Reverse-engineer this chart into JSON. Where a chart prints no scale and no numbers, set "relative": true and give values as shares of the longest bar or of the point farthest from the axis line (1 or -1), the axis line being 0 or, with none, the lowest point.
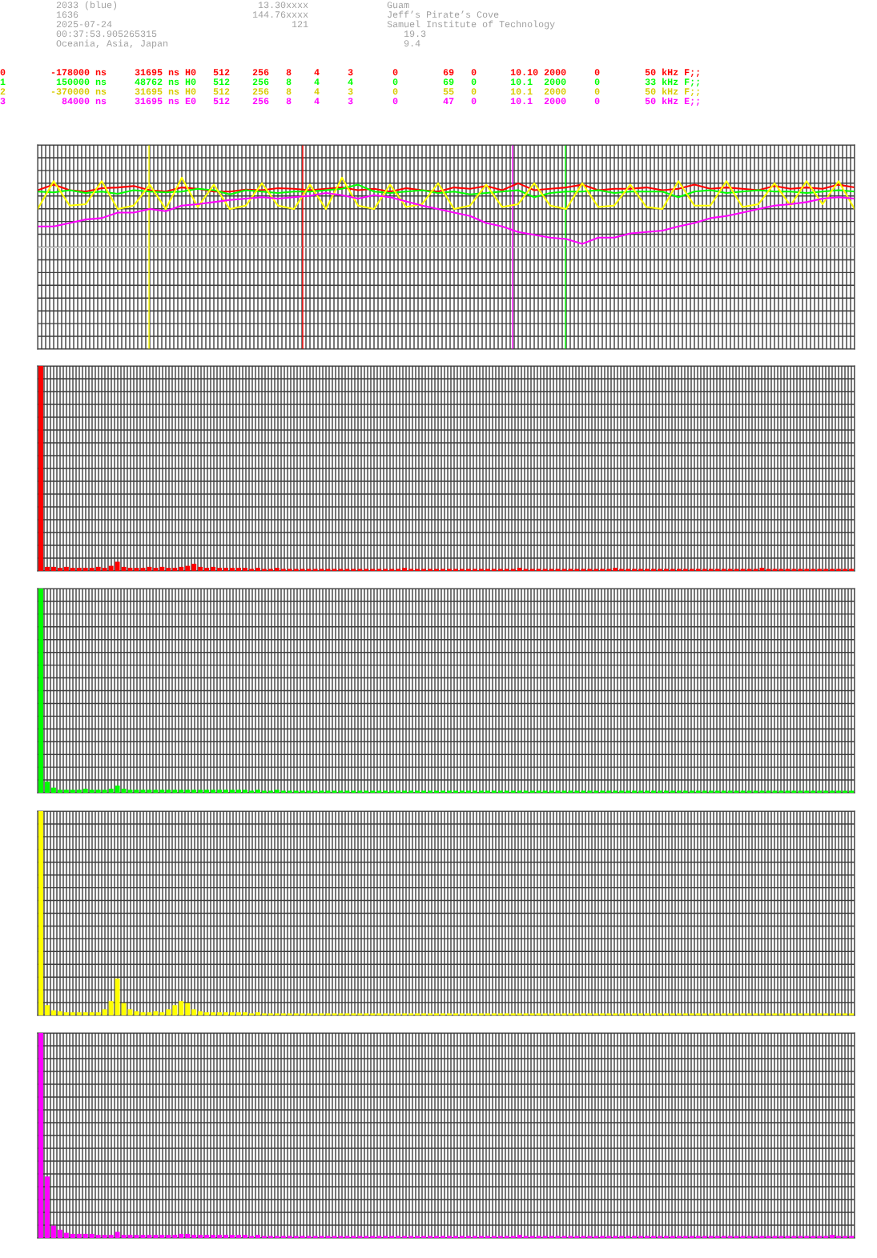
{
  "chart_data": [
    {
      "type": "other",
      "annotations": [
        "          2033 (blue)                         13.30xxxx              Guam",
        "          1636                               144.76xxxx              Jeff’s Pirate’s Cove",
        "          2025-07-24                                121              Samuel Institute of Technology",
        "          00:37:53.905265315                                            19.3",
        "          Oceania, Asia, Japan                                          9.4",
        "0        -178000 ns     31695 ns H0   512    256   8    4     3       0        69   0      10.10 2000     0        50 kHz F;;",
        "1         150000 ns     48762 ns H0   512    256   8    4     4       0        69   0      10.1  2000     0        33 kHz F;;",
        "2        -370000 ns     31695 ns H0   512    256   8    4     3       0        55   0      10.1  2000     0        50 kHz F;;",
        "3          84000 ns     31695 ns E0   512    256   8    4     3       0        47   0      10.1  2000     0        50 kHz E;;"
      ],
      "colors": [
        "#a0a0a0",
        "#a0a0a0",
        "#a0a0a0",
        "#a0a0a0",
        "#a0a0a0",
        "#ff0000",
        "#00ff00",
        "#d8cc00",
        "#ff00ff"
      ]
    },
    {
      "type": "line",
      "relative": true,
      "tick_labels": false,
      "grid": true,
      "line_style": "solid",
      "categories": [
        null,
        null,
        null,
        null,
        null,
        null,
        null,
        null,
        null,
        null,
        null,
        null,
        null,
        null,
        null,
        null,
        null,
        null,
        null,
        null,
        null,
        null,
        null,
        null,
        null,
        null,
        null,
        null,
        null,
        null,
        null,
        null,
        null,
        null,
        null,
        null,
        null,
        null,
        null,
        null,
        null,
        null,
        null,
        null,
        null,
        null,
        null,
        null,
        null,
        null,
        null,
        null
      ],
      "series": [
        {
          "color": "#ff0000",
          "values": [
            0.82,
            0.9,
            0.82,
            0.8,
            0.85,
            0.86,
            0.88,
            0.82,
            0.8,
            0.86,
            0.84,
            0.8,
            0.8,
            0.83,
            0.82,
            0.85,
            0.84,
            0.82,
            0.84,
            0.86,
            0.82,
            0.84,
            0.8,
            0.85,
            0.82,
            0.8,
            0.86,
            0.84,
            0.88,
            0.82,
            0.92,
            0.82,
            0.84,
            0.86,
            0.9,
            0.82,
            0.84,
            0.84,
            0.86,
            0.82,
            0.84,
            0.9,
            0.84,
            0.86,
            0.84,
            0.82,
            0.88,
            0.84,
            0.86,
            0.84,
            0.9,
            0.86
          ]
        },
        {
          "color": "#00ff00",
          "values": [
            0.8,
            0.79,
            0.82,
            0.78,
            0.8,
            0.77,
            0.82,
            0.8,
            0.79,
            0.8,
            0.84,
            0.82,
            0.76,
            0.82,
            0.8,
            0.78,
            0.8,
            0.8,
            0.82,
            0.84,
            0.9,
            0.8,
            0.78,
            0.8,
            0.82,
            0.78,
            0.8,
            0.76,
            0.78,
            0.8,
            0.82,
            0.72,
            0.78,
            0.8,
            0.8,
            0.82,
            0.78,
            0.8,
            0.8,
            0.8,
            0.72,
            0.8,
            0.82,
            0.78,
            0.8,
            0.82,
            0.8,
            0.8,
            0.78,
            0.8,
            0.82,
            0.8
          ]
        },
        {
          "color": "#ffff00",
          "values": [
            0.55,
            0.95,
            0.6,
            0.62,
            0.95,
            0.55,
            0.6,
            0.9,
            0.55,
            1,
            0.58,
            0.9,
            0.55,
            0.6,
            0.92,
            0.6,
            0.55,
            0.9,
            0.55,
            1,
            0.6,
            0.55,
            0.9,
            0.58,
            0.62,
            0.92,
            0.55,
            0.6,
            0.9,
            0.58,
            0.62,
            0.92,
            0.6,
            0.55,
            0.92,
            0.58,
            0.6,
            0.9,
            0.58,
            0.55,
            0.95,
            0.6,
            0.6,
            0.95,
            0.58,
            0.62,
            0.92,
            0.6,
            0.95,
            0.62,
            0.95,
            0.55
          ]
        },
        {
          "color": "#ff00ff",
          "values": [
            0.3,
            0.3,
            0.35,
            0.4,
            0.42,
            0.5,
            0.5,
            0.55,
            0.52,
            0.6,
            0.62,
            0.65,
            0.68,
            0.7,
            0.72,
            0.7,
            0.72,
            0.74,
            0.78,
            0.75,
            0.7,
            0.75,
            0.72,
            0.66,
            0.6,
            0.55,
            0.5,
            0.45,
            0.35,
            0.3,
            0.22,
            0.18,
            0.14,
            0.12,
            0.05,
            0.14,
            0.14,
            0.2,
            0.22,
            0.24,
            0.3,
            0.35,
            0.42,
            0.45,
            0.5,
            0.55,
            0.6,
            0.62,
            0.65,
            0.7,
            0.72,
            0.7
          ]
        }
      ]
    },
    {
      "type": "bar",
      "relative": true,
      "tick_labels": false,
      "grid": true,
      "color": "#ff0000",
      "categories": [
        null,
        null,
        null,
        null,
        null,
        null,
        null,
        null,
        null,
        null,
        null,
        null,
        null,
        null,
        null,
        null,
        null,
        null,
        null,
        null,
        null,
        null,
        null,
        null,
        null,
        null,
        null,
        null,
        null,
        null,
        null,
        null,
        null,
        null,
        null,
        null,
        null,
        null,
        null,
        null,
        null,
        null,
        null,
        null,
        null,
        null,
        null,
        null,
        null,
        null,
        null,
        null,
        null,
        null,
        null,
        null,
        null,
        null,
        null,
        null,
        null,
        null,
        null,
        null,
        null,
        null,
        null,
        null,
        null,
        null,
        null,
        null,
        null,
        null,
        null,
        null,
        null,
        null,
        null,
        null,
        null,
        null,
        null,
        null,
        null,
        null,
        null,
        null,
        null,
        null,
        null,
        null,
        null,
        null,
        null,
        null,
        null,
        null,
        null,
        null,
        null,
        null,
        null,
        null,
        null,
        null,
        null,
        null,
        null,
        null,
        null,
        null,
        null,
        null,
        null,
        null,
        null,
        null,
        null,
        null,
        null,
        null,
        null,
        null,
        null,
        null,
        null,
        null
      ],
      "values": [
        1,
        0.02,
        0.02,
        0.015,
        0.02,
        0.015,
        0.015,
        0.015,
        0.015,
        0.02,
        0.015,
        0.025,
        0.045,
        0.02,
        0.015,
        0.015,
        0.015,
        0.02,
        0.015,
        0.02,
        0.015,
        0.015,
        0.02,
        0.025,
        0.035,
        0.02,
        0.015,
        0.02,
        0.015,
        0.015,
        0.015,
        0.015,
        0.015,
        0.01,
        0.015,
        0.01,
        0.01,
        0.015,
        0.01,
        0.01,
        0.01,
        0.01,
        0.01,
        0.01,
        0.01,
        0.01,
        0.01,
        0.01,
        0.01,
        0.01,
        0.01,
        0.01,
        0.01,
        0.01,
        0.01,
        0.01,
        0.01,
        0.015,
        0.01,
        0.01,
        0.01,
        0.01,
        0.01,
        0.01,
        0.01,
        0.01,
        0.01,
        0.01,
        0.01,
        0.01,
        0.01,
        0.01,
        0.01,
        0.01,
        0.01,
        0.015,
        0.01,
        0.01,
        0.01,
        0.01,
        0.01,
        0.01,
        0.01,
        0.01,
        0.01,
        0.01,
        0.01,
        0.01,
        0.01,
        0.01,
        0.015,
        0.01,
        0.01,
        0.01,
        0.01,
        0.01,
        0.01,
        0.01,
        0.01,
        0.01,
        0.01,
        0.01,
        0.01,
        0.01,
        0.01,
        0.01,
        0.01,
        0.01,
        0.01,
        0.01,
        0.01,
        0.01,
        0.01,
        0.015,
        0.01,
        0.01,
        0.01,
        0.01,
        0.01,
        0.01,
        0.01,
        0.01,
        0.01,
        0.01,
        0.01,
        0.01,
        0.01,
        0.01
      ]
    },
    {
      "type": "bar",
      "relative": true,
      "tick_labels": false,
      "grid": true,
      "color": "#00ff00",
      "categories": [
        null,
        null,
        null,
        null,
        null,
        null,
        null,
        null,
        null,
        null,
        null,
        null,
        null,
        null,
        null,
        null,
        null,
        null,
        null,
        null,
        null,
        null,
        null,
        null,
        null,
        null,
        null,
        null,
        null,
        null,
        null,
        null,
        null,
        null,
        null,
        null,
        null,
        null,
        null,
        null,
        null,
        null,
        null,
        null,
        null,
        null,
        null,
        null,
        null,
        null,
        null,
        null,
        null,
        null,
        null,
        null,
        null,
        null,
        null,
        null,
        null,
        null,
        null,
        null,
        null,
        null,
        null,
        null,
        null,
        null,
        null,
        null,
        null,
        null,
        null,
        null,
        null,
        null,
        null,
        null,
        null,
        null,
        null,
        null,
        null,
        null,
        null,
        null,
        null,
        null,
        null,
        null,
        null,
        null,
        null,
        null,
        null,
        null,
        null,
        null,
        null,
        null,
        null,
        null,
        null,
        null,
        null,
        null,
        null,
        null,
        null,
        null,
        null,
        null,
        null,
        null,
        null,
        null,
        null,
        null,
        null,
        null,
        null,
        null,
        null,
        null,
        null,
        null
      ],
      "values": [
        1,
        0.055,
        0.025,
        0.015,
        0.015,
        0.015,
        0.015,
        0.02,
        0.015,
        0.015,
        0.015,
        0.02,
        0.035,
        0.02,
        0.015,
        0.015,
        0.015,
        0.015,
        0.015,
        0.015,
        0.015,
        0.015,
        0.015,
        0.015,
        0.015,
        0.015,
        0.015,
        0.015,
        0.015,
        0.015,
        0.015,
        0.015,
        0.015,
        0.01,
        0.015,
        0.01,
        0.01,
        0.015,
        0.01,
        0.01,
        0.01,
        0.01,
        0.01,
        0.01,
        0.01,
        0.01,
        0.01,
        0.01,
        0.01,
        0.01,
        0.01,
        0.01,
        0.01,
        0.01,
        0.01,
        0.01,
        0.01,
        0.01,
        0.01,
        0.01,
        0.01,
        0.01,
        0.01,
        0.01,
        0.01,
        0.01,
        0.01,
        0.01,
        0.01,
        0.01,
        0.01,
        0.01,
        0.01,
        0.01,
        0.01,
        0.01,
        0.01,
        0.01,
        0.01,
        0.01,
        0.01,
        0.01,
        0.01,
        0.01,
        0.01,
        0.01,
        0.01,
        0.01,
        0.01,
        0.01,
        0.01,
        0.01,
        0.01,
        0.01,
        0.01,
        0.01,
        0.01,
        0.01,
        0.01,
        0.01,
        0.01,
        0.01,
        0.01,
        0.01,
        0.01,
        0.01,
        0.01,
        0.01,
        0.01,
        0.01,
        0.01,
        0.01,
        0.01,
        0.01,
        0.01,
        0.01,
        0.01,
        0.01,
        0.01,
        0.01,
        0.01,
        0.01,
        0.01,
        0.01,
        0.01,
        0.01,
        0.01,
        0.01
      ]
    },
    {
      "type": "bar",
      "relative": true,
      "tick_labels": false,
      "grid": true,
      "color": "#ffff00",
      "categories": [
        null,
        null,
        null,
        null,
        null,
        null,
        null,
        null,
        null,
        null,
        null,
        null,
        null,
        null,
        null,
        null,
        null,
        null,
        null,
        null,
        null,
        null,
        null,
        null,
        null,
        null,
        null,
        null,
        null,
        null,
        null,
        null,
        null,
        null,
        null,
        null,
        null,
        null,
        null,
        null,
        null,
        null,
        null,
        null,
        null,
        null,
        null,
        null,
        null,
        null,
        null,
        null,
        null,
        null,
        null,
        null,
        null,
        null,
        null,
        null,
        null,
        null,
        null,
        null,
        null,
        null,
        null,
        null,
        null,
        null,
        null,
        null,
        null,
        null,
        null,
        null,
        null,
        null,
        null,
        null,
        null,
        null,
        null,
        null,
        null,
        null,
        null,
        null,
        null,
        null,
        null,
        null,
        null,
        null,
        null,
        null,
        null,
        null,
        null,
        null,
        null,
        null,
        null,
        null,
        null,
        null,
        null,
        null,
        null,
        null,
        null,
        null,
        null,
        null,
        null,
        null,
        null,
        null,
        null,
        null,
        null,
        null,
        null,
        null,
        null,
        null,
        null,
        null
      ],
      "values": [
        1,
        0.05,
        0.025,
        0.02,
        0.015,
        0.015,
        0.015,
        0.015,
        0.015,
        0.015,
        0.03,
        0.07,
        0.18,
        0.06,
        0.03,
        0.02,
        0.015,
        0.015,
        0.02,
        0.015,
        0.03,
        0.05,
        0.07,
        0.06,
        0.03,
        0.02,
        0.015,
        0.015,
        0.015,
        0.015,
        0.015,
        0.015,
        0.015,
        0.01,
        0.015,
        0.01,
        0.01,
        0.01,
        0.01,
        0.01,
        0.01,
        0.01,
        0.01,
        0.01,
        0.01,
        0.01,
        0.01,
        0.01,
        0.01,
        0.01,
        0.01,
        0.01,
        0.01,
        0.01,
        0.01,
        0.01,
        0.01,
        0.01,
        0.01,
        0.01,
        0.01,
        0.01,
        0.01,
        0.01,
        0.01,
        0.01,
        0.01,
        0.01,
        0.01,
        0.01,
        0.01,
        0.01,
        0.01,
        0.01,
        0.01,
        0.01,
        0.01,
        0.01,
        0.01,
        0.01,
        0.01,
        0.01,
        0.01,
        0.01,
        0.01,
        0.01,
        0.01,
        0.01,
        0.01,
        0.01,
        0.01,
        0.01,
        0.01,
        0.01,
        0.01,
        0.01,
        0.01,
        0.01,
        0.01,
        0.01,
        0.01,
        0.01,
        0.01,
        0.01,
        0.01,
        0.01,
        0.01,
        0.01,
        0.01,
        0.01,
        0.01,
        0.01,
        0.01,
        0.01,
        0.01,
        0.01,
        0.01,
        0.01,
        0.01,
        0.01,
        0.01,
        0.01,
        0.01,
        0.01,
        0.01,
        0.01,
        0.01,
        0.01
      ]
    },
    {
      "type": "bar",
      "relative": true,
      "tick_labels": false,
      "grid": true,
      "color": "#ff00ff",
      "categories": [
        null,
        null,
        null,
        null,
        null,
        null,
        null,
        null,
        null,
        null,
        null,
        null,
        null,
        null,
        null,
        null,
        null,
        null,
        null,
        null,
        null,
        null,
        null,
        null,
        null,
        null,
        null,
        null,
        null,
        null,
        null,
        null,
        null,
        null,
        null,
        null,
        null,
        null,
        null,
        null,
        null,
        null,
        null,
        null,
        null,
        null,
        null,
        null,
        null,
        null,
        null,
        null,
        null,
        null,
        null,
        null,
        null,
        null,
        null,
        null,
        null,
        null,
        null,
        null,
        null,
        null,
        null,
        null,
        null,
        null,
        null,
        null,
        null,
        null,
        null,
        null,
        null,
        null,
        null,
        null,
        null,
        null,
        null,
        null,
        null,
        null,
        null,
        null,
        null,
        null,
        null,
        null,
        null,
        null,
        null,
        null,
        null,
        null,
        null,
        null,
        null,
        null,
        null,
        null,
        null,
        null,
        null,
        null,
        null,
        null,
        null,
        null,
        null,
        null,
        null,
        null,
        null,
        null,
        null,
        null,
        null,
        null,
        null,
        null,
        null,
        null,
        null,
        null
      ],
      "values": [
        1,
        0.3,
        0.06,
        0.04,
        0.025,
        0.02,
        0.02,
        0.02,
        0.02,
        0.015,
        0.015,
        0.015,
        0.03,
        0.015,
        0.015,
        0.015,
        0.015,
        0.015,
        0.015,
        0.015,
        0.015,
        0.015,
        0.02,
        0.02,
        0.015,
        0.015,
        0.015,
        0.015,
        0.015,
        0.015,
        0.015,
        0.015,
        0.015,
        0.01,
        0.015,
        0.01,
        0.01,
        0.01,
        0.01,
        0.01,
        0.01,
        0.01,
        0.01,
        0.01,
        0.01,
        0.01,
        0.01,
        0.01,
        0.01,
        0.01,
        0.01,
        0.01,
        0.01,
        0.01,
        0.01,
        0.01,
        0.01,
        0.01,
        0.01,
        0.01,
        0.01,
        0.01,
        0.01,
        0.01,
        0.01,
        0.01,
        0.01,
        0.01,
        0.01,
        0.01,
        0.01,
        0.01,
        0.01,
        0.01,
        0.01,
        0.015,
        0.01,
        0.01,
        0.01,
        0.01,
        0.01,
        0.01,
        0.01,
        0.01,
        0.01,
        0.01,
        0.01,
        0.01,
        0.01,
        0.01,
        0.01,
        0.01,
        0.01,
        0.01,
        0.01,
        0.01,
        0.01,
        0.01,
        0.01,
        0.01,
        0.01,
        0.01,
        0.01,
        0.01,
        0.01,
        0.01,
        0.01,
        0.01,
        0.01,
        0.01,
        0.01,
        0.01,
        0.01,
        0.01,
        0.01,
        0.01,
        0.01,
        0.01,
        0.01,
        0.01,
        0.01,
        0.01,
        0.01,
        0.01,
        0.015,
        0.01,
        0.01,
        0.01
      ]
    }
  ]
}
